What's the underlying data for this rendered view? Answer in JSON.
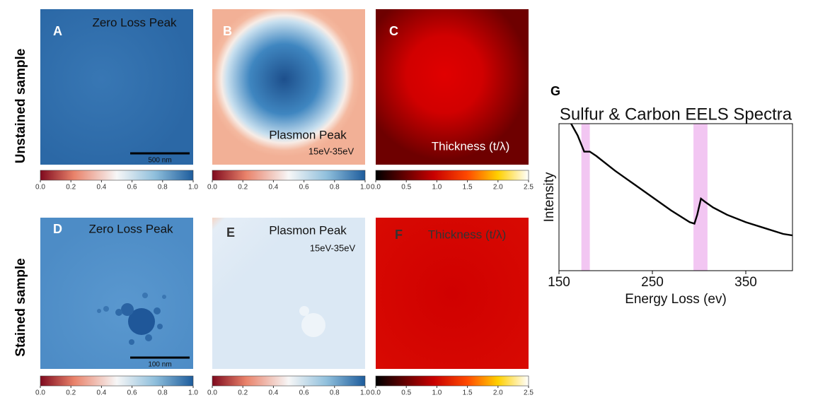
{
  "row_labels": [
    "Unstained sample",
    "Stained sample"
  ],
  "panels": [
    {
      "letter": "A",
      "title": "Zero Loss Peak",
      "scale_bar": "500 nm",
      "colorbar": {
        "cmap": "RdBu",
        "lim": [
          0,
          1
        ],
        "ticks": [
          {
            "value": 0,
            "label": "0.0"
          },
          0.2,
          0.4,
          0.6,
          0.8,
          {
            "value": 1,
            "label": "1.0"
          }
        ]
      }
    },
    {
      "letter": "B",
      "title": "Plasmon Peak",
      "subtitle": "15eV-35eV",
      "colorbar": {
        "cmap": "RdBu",
        "lim": [
          0,
          1
        ],
        "ticks": [
          {
            "value": 0,
            "label": "0.0"
          },
          0.2,
          0.4,
          0.6,
          0.8,
          {
            "value": 1,
            "label": "1.0"
          }
        ]
      }
    },
    {
      "letter": "C",
      "title": "Thickness (t/λ)",
      "colorbar": {
        "cmap": "hot",
        "lim": [
          0,
          2.5
        ],
        "ticks": [
          {
            "value": 0,
            "label": "0.0"
          },
          0.5,
          {
            "value": 1,
            "label": "1.0"
          },
          1.5,
          {
            "value": 2,
            "label": "2.0"
          },
          2.5
        ]
      }
    },
    {
      "letter": "D",
      "title": "Zero Loss Peak",
      "scale_bar": "100 nm",
      "colorbar": {
        "cmap": "RdBu",
        "lim": [
          0,
          1
        ],
        "ticks": [
          {
            "value": 0,
            "label": "0.0"
          },
          0.2,
          0.4,
          0.6,
          0.8,
          {
            "value": 1,
            "label": "1.0"
          }
        ]
      }
    },
    {
      "letter": "E",
      "title": "Plasmon Peak",
      "subtitle": "15eV-35eV",
      "colorbar": {
        "cmap": "RdBu",
        "lim": [
          0,
          1
        ],
        "ticks": [
          {
            "value": 0,
            "label": "0.0"
          },
          0.2,
          0.4,
          0.6,
          0.8,
          {
            "value": 1,
            "label": "1.0"
          }
        ]
      }
    },
    {
      "letter": "F",
      "title": "Thickness (t/λ)",
      "colorbar": {
        "cmap": "hot",
        "lim": [
          0,
          2.5
        ],
        "ticks": [
          {
            "value": 0,
            "label": "0.0"
          },
          0.5,
          {
            "value": 1,
            "label": "1.0"
          },
          1.5,
          {
            "value": 2,
            "label": "2.0"
          },
          2.5
        ]
      }
    }
  ],
  "spectrum": {
    "type": "line",
    "label": "G",
    "title": "Sulfur & Carbon EELS Spectra",
    "x_label": "Energy Loss (ev)",
    "y_label": "Intensity",
    "xlim": [
      150,
      400
    ],
    "ylim": [
      0,
      100
    ],
    "xticks": [
      150,
      250,
      350
    ],
    "x": [
      163,
      170,
      177,
      183,
      190,
      210,
      230,
      250,
      270,
      290,
      295,
      298,
      302,
      306,
      315,
      330,
      350,
      370,
      390,
      400
    ],
    "values": [
      100,
      92,
      81,
      81,
      78,
      68,
      59,
      50,
      41,
      33,
      32,
      38,
      49,
      47,
      43,
      38,
      33,
      29,
      25,
      24
    ],
    "color": "#000000",
    "highlights": [
      [
        174,
        183
      ],
      [
        294,
        309
      ]
    ],
    "highlight_color": "#f2c6f2"
  }
}
